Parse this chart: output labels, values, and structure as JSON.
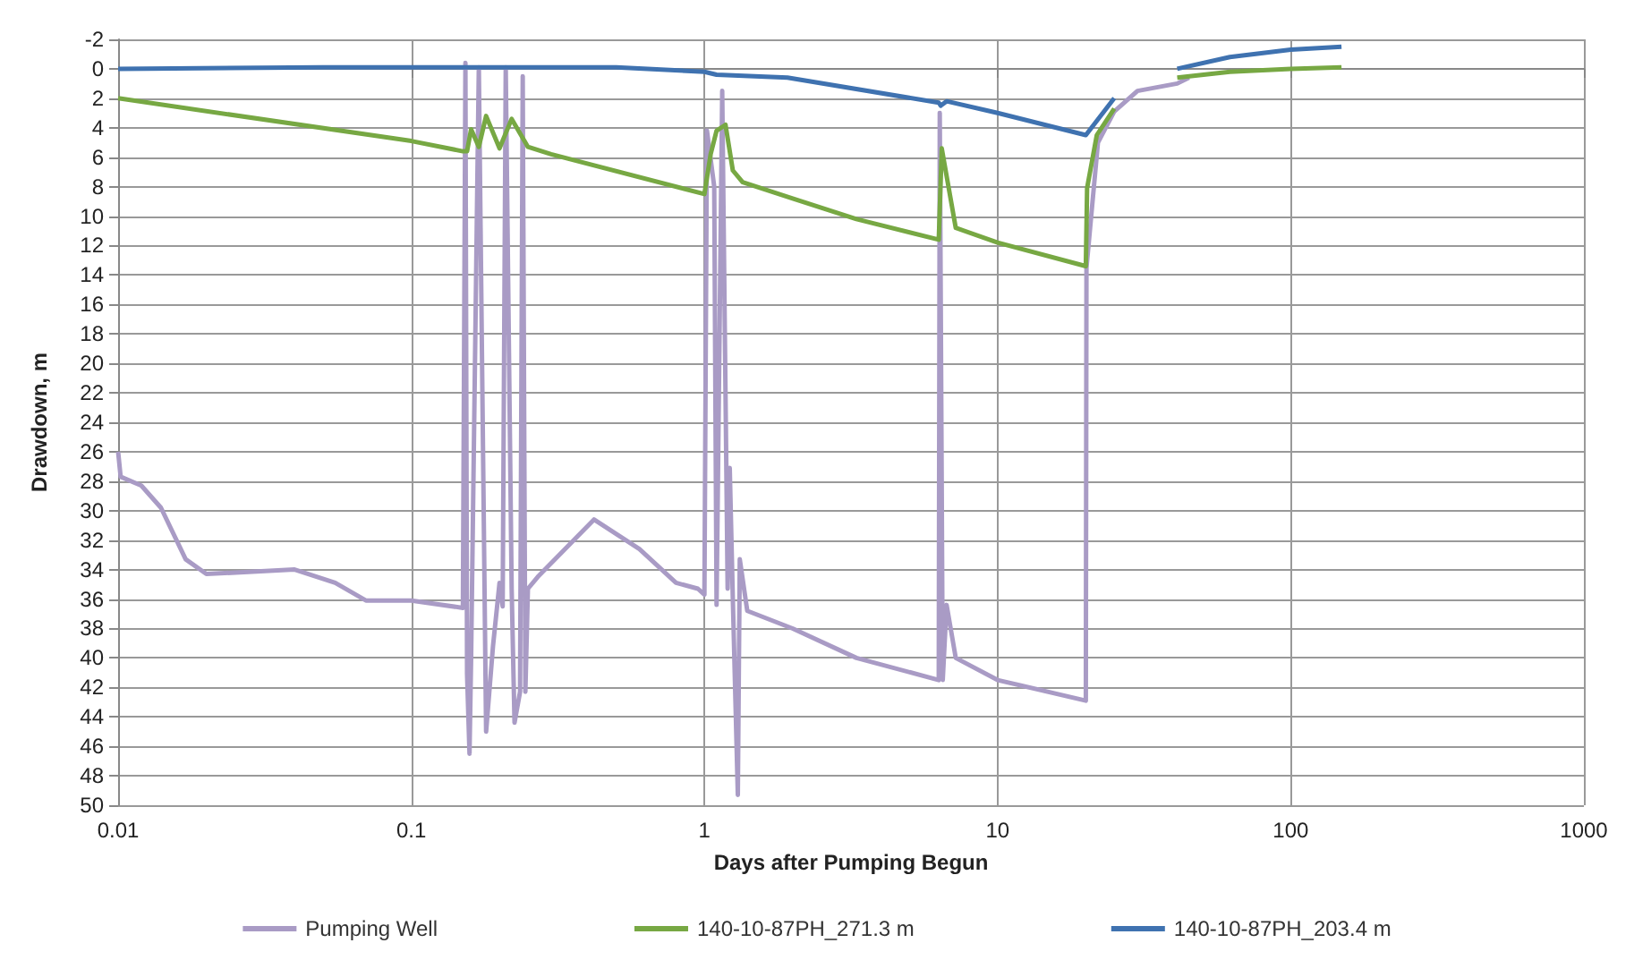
{
  "chart_data": {
    "type": "line",
    "xlabel": "Days after Pumping Begun",
    "ylabel": "Drawdown, m",
    "log": "x",
    "grid": true,
    "legend": "bottom",
    "marker": "none",
    "line_style": "solid",
    "xlim": [
      0.01,
      1000
    ],
    "xticks": [
      0.01,
      0.1,
      1,
      10,
      100,
      1000
    ],
    "ylim": [
      50,
      -2
    ],
    "yticks": [
      -2,
      0,
      2,
      4,
      6,
      8,
      10,
      12,
      14,
      16,
      18,
      20,
      22,
      24,
      26,
      28,
      30,
      32,
      34,
      36,
      38,
      40,
      42,
      44,
      46,
      48,
      50
    ],
    "series": [
      {
        "name": "Pumping Well",
        "color": "#a99bc5",
        "x": [
          0.01,
          0.0102,
          0.012,
          0.014,
          0.017,
          0.02,
          0.04,
          0.055,
          0.07,
          0.1,
          0.15,
          0.153,
          0.155,
          0.158,
          0.16,
          0.17,
          0.18,
          0.19,
          0.2,
          0.205,
          0.21,
          0.22,
          0.225,
          0.235,
          0.24,
          0.245,
          0.25,
          0.27,
          0.42,
          0.6,
          0.8,
          0.95,
          1.0,
          1.02,
          1.08,
          1.1,
          1.15,
          1.2,
          1.22,
          1.25,
          1.3,
          1.32,
          1.4,
          2,
          3.3,
          6.3,
          6.35,
          6.5,
          6.7,
          7.2,
          10,
          20,
          20.1,
          22,
          25,
          30,
          41,
          45
        ],
        "values": [
          26,
          27.7,
          28.3,
          29.8,
          33.3,
          34.3,
          34,
          34.9,
          36.1,
          36.1,
          36.6,
          -0.4,
          41.1,
          46.5,
          40,
          -0.1,
          45,
          39.2,
          34.9,
          36.5,
          -0.1,
          35.3,
          44.4,
          42.3,
          0.5,
          42.3,
          35.3,
          34.5,
          30.6,
          32.6,
          34.9,
          35.3,
          35.7,
          4.2,
          8,
          36.4,
          1.5,
          35.3,
          27.1,
          36,
          49.3,
          33.3,
          36.8,
          38,
          40,
          41.5,
          3,
          41.5,
          36.4,
          40,
          41.5,
          42.9,
          13.5,
          5,
          2.9,
          1.5,
          1,
          0.6
        ]
      },
      {
        "name": "140-10-87PH_271.3 m",
        "color": "#77a843",
        "x": [
          0.01,
          0.1,
          0.15,
          0.155,
          0.16,
          0.17,
          0.18,
          0.2,
          0.22,
          0.25,
          0.3,
          1.0,
          1.05,
          1.1,
          1.18,
          1.25,
          1.35,
          2,
          3.3,
          6.3,
          6.45,
          7.2,
          10,
          20,
          20.2,
          21.8,
          25,
          33,
          41,
          62,
          100,
          149
        ],
        "values": [
          2,
          4.9,
          5.6,
          5.6,
          4.1,
          5.3,
          3.2,
          5.4,
          3.4,
          5.3,
          5.8,
          8.5,
          5.8,
          4.2,
          3.8,
          6.9,
          7.7,
          8.8,
          10.2,
          11.6,
          5.4,
          10.8,
          11.8,
          13.4,
          8.1,
          4.5,
          2.7,
          null,
          0.6,
          0.2,
          0,
          -0.1
        ]
      },
      {
        "name": "140-10-87PH_203.4 m",
        "color": "#3f72b0",
        "x": [
          0.01,
          0.05,
          0.1,
          0.5,
          1,
          1.1,
          1.92,
          6.3,
          6.4,
          6.7,
          10,
          20,
          25,
          33,
          41,
          62,
          100,
          149
        ],
        "values": [
          0,
          -0.1,
          -0.1,
          -0.1,
          0.2,
          0.4,
          0.6,
          2.3,
          2.5,
          2.2,
          3,
          4.5,
          2,
          null,
          0,
          -0.8,
          -1.3,
          -1.5
        ]
      }
    ]
  }
}
